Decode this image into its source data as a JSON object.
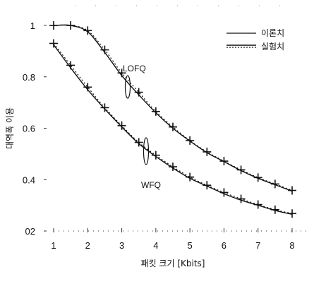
{
  "chart_data": {
    "type": "line",
    "xlabel": "패킷 크기 [Kbits]",
    "ylabel": "대역폭 이용",
    "xlim": [
      1,
      8
    ],
    "ylim": [
      0.2,
      1.0
    ],
    "x_ticks": [
      "1",
      "2",
      "3",
      "4",
      "5",
      "6",
      "7",
      "8"
    ],
    "y_ticks": [
      "02",
      "0.4",
      "0.6",
      "0.8",
      "1"
    ],
    "legend": {
      "position": "top-right",
      "entries": [
        "이론치",
        "실험치"
      ]
    },
    "annotations": [
      "LOFQ",
      "WFQ"
    ],
    "series": [
      {
        "name": "이론치",
        "curve": "LOFQ",
        "style": "solid",
        "x": [
          1,
          1.5,
          2,
          2.5,
          3,
          3.5,
          4,
          4.5,
          5,
          5.5,
          6,
          6.5,
          7,
          7.5,
          8
        ],
        "y": [
          1.0,
          1.0,
          0.975,
          0.895,
          0.805,
          0.73,
          0.66,
          0.6,
          0.55,
          0.505,
          0.47,
          0.435,
          0.405,
          0.38,
          0.355
        ]
      },
      {
        "name": "실험치",
        "curve": "LOFQ",
        "style": "dotted-crosses",
        "x": [
          1,
          1.5,
          2,
          2.5,
          3,
          3.5,
          4,
          4.5,
          5,
          5.5,
          6,
          6.5,
          7,
          7.5,
          8
        ],
        "y": [
          1.0,
          1.0,
          0.98,
          0.905,
          0.815,
          0.74,
          0.665,
          0.605,
          0.552,
          0.508,
          0.472,
          0.438,
          0.408,
          0.383,
          0.358
        ]
      },
      {
        "name": "이론치",
        "curve": "WFQ",
        "style": "solid",
        "x": [
          1,
          1.5,
          2,
          2.5,
          3,
          3.5,
          4,
          4.5,
          5,
          5.5,
          6,
          6.5,
          7,
          7.5,
          8
        ],
        "y": [
          0.925,
          0.835,
          0.75,
          0.675,
          0.605,
          0.54,
          0.49,
          0.445,
          0.405,
          0.375,
          0.345,
          0.32,
          0.3,
          0.28,
          0.265
        ]
      },
      {
        "name": "실험치",
        "curve": "WFQ",
        "style": "dotted-crosses",
        "x": [
          1,
          1.5,
          2,
          2.5,
          3,
          3.5,
          4,
          4.5,
          5,
          5.5,
          6,
          6.5,
          7,
          7.5,
          8
        ],
        "y": [
          0.93,
          0.845,
          0.76,
          0.68,
          0.61,
          0.545,
          0.495,
          0.45,
          0.41,
          0.378,
          0.35,
          0.325,
          0.303,
          0.283,
          0.268
        ]
      }
    ]
  }
}
